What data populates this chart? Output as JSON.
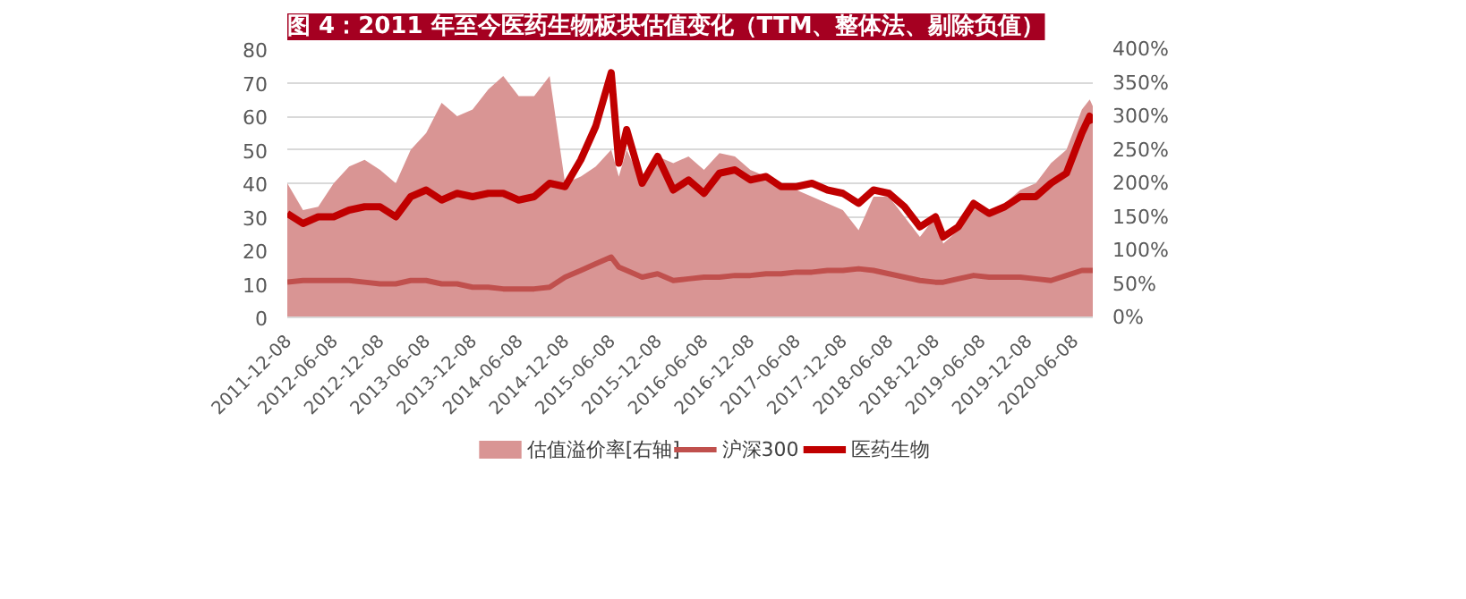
{
  "chart_data": {
    "type": "line",
    "title": "图 4：2011 年至今医药生物板块估值变化（TTM、整体法、剔除负值）",
    "x": [
      "2011-12-08",
      "2012-02-08",
      "2012-04-08",
      "2012-06-08",
      "2012-08-08",
      "2012-10-08",
      "2012-12-08",
      "2013-02-08",
      "2013-04-08",
      "2013-06-08",
      "2013-08-08",
      "2013-10-08",
      "2013-12-08",
      "2014-02-08",
      "2014-04-08",
      "2014-06-08",
      "2014-08-08",
      "2014-10-08",
      "2014-12-08",
      "2015-02-08",
      "2015-04-08",
      "2015-06-08",
      "2015-07-08",
      "2015-08-08",
      "2015-10-08",
      "2015-12-08",
      "2016-02-08",
      "2016-04-08",
      "2016-06-08",
      "2016-08-08",
      "2016-10-08",
      "2016-12-08",
      "2017-02-08",
      "2017-04-08",
      "2017-06-08",
      "2017-08-08",
      "2017-10-08",
      "2017-12-08",
      "2018-02-08",
      "2018-04-08",
      "2018-06-08",
      "2018-08-08",
      "2018-10-08",
      "2018-12-08",
      "2019-01-08",
      "2019-03-08",
      "2019-05-08",
      "2019-07-08",
      "2019-09-08",
      "2019-11-08",
      "2020-01-08",
      "2020-03-08",
      "2020-05-08",
      "2020-07-08",
      "2020-08-08",
      "2020-08-20"
    ],
    "series": [
      {
        "name": "估值溢价率[右轴]",
        "type": "area",
        "axis": "y2",
        "color": "#d99594",
        "values": [
          200,
          160,
          165,
          200,
          225,
          235,
          220,
          200,
          250,
          275,
          320,
          300,
          310,
          340,
          360,
          330,
          330,
          360,
          200,
          210,
          225,
          250,
          210,
          250,
          200,
          240,
          230,
          240,
          220,
          245,
          240,
          220,
          210,
          200,
          190,
          180,
          170,
          160,
          130,
          180,
          180,
          150,
          120,
          150,
          110,
          130,
          165,
          150,
          170,
          190,
          200,
          230,
          250,
          310,
          325,
          315
        ]
      },
      {
        "name": "沪深300",
        "color": "#c0504d",
        "values": [
          10.5,
          11,
          11,
          11,
          11,
          10.5,
          10,
          10,
          11,
          11,
          10,
          10,
          9,
          9,
          8.5,
          8.5,
          8.5,
          9,
          12,
          14,
          16,
          18,
          15,
          14,
          12,
          13,
          11,
          11.5,
          12,
          12,
          12.5,
          12.5,
          13,
          13,
          13.5,
          13.5,
          14,
          14,
          14.5,
          14,
          13,
          12,
          11,
          10.5,
          10.5,
          11.5,
          12.5,
          12,
          12,
          12,
          11.5,
          11,
          12.5,
          14,
          14,
          14
        ]
      },
      {
        "name": "医药生物",
        "color": "#c00000",
        "values": [
          31,
          28,
          30,
          30,
          32,
          33,
          33,
          30,
          36,
          38,
          35,
          37,
          36,
          37,
          37,
          35,
          36,
          40,
          39,
          47,
          57,
          73,
          46,
          56,
          40,
          48,
          38,
          41,
          37,
          43,
          44,
          41,
          42,
          39,
          39,
          40,
          38,
          37,
          34,
          38,
          37,
          33,
          27,
          30,
          24,
          27,
          34,
          31,
          33,
          36,
          36,
          40,
          43,
          55,
          60,
          58
        ]
      }
    ],
    "ylim": [
      0,
      80
    ],
    "yticks": [
      0,
      10,
      20,
      30,
      40,
      50,
      60,
      70,
      80
    ],
    "y2lim": [
      0,
      400
    ],
    "y2ticks": [
      {
        "value": 0,
        "label": "0%"
      },
      {
        "value": 50,
        "label": "50%"
      },
      {
        "value": 100,
        "label": "100%"
      },
      {
        "value": 150,
        "label": "150%"
      },
      {
        "value": 200,
        "label": "200%"
      },
      {
        "value": 250,
        "label": "250%"
      },
      {
        "value": 300,
        "label": "300%"
      },
      {
        "value": 350,
        "label": "350%"
      },
      {
        "value": 400,
        "label": "400%"
      }
    ],
    "xlim": [
      "2011-12-08",
      "2020-08-20"
    ],
    "xticks": [
      "2011-12-08",
      "2012-06-08",
      "2012-12-08",
      "2013-06-08",
      "2013-12-08",
      "2014-06-08",
      "2014-12-08",
      "2015-06-08",
      "2015-12-08",
      "2016-06-08",
      "2016-12-08",
      "2017-06-08",
      "2017-12-08",
      "2018-06-08",
      "2018-12-08",
      "2019-06-08",
      "2019-12-08",
      "2020-06-08"
    ],
    "grid": "y",
    "legend": "bottom",
    "line_style": "solid"
  }
}
